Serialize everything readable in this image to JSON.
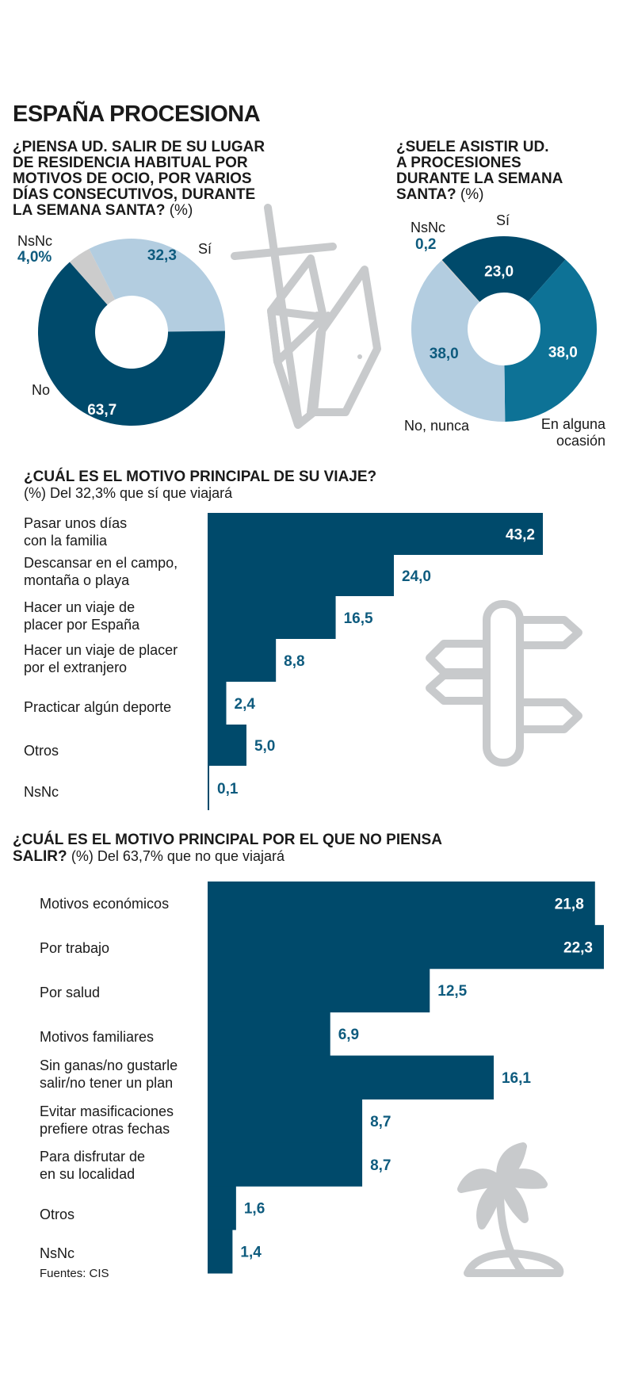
{
  "title": "ESPAÑA PROCESIONA",
  "colors": {
    "navy": "#004a6b",
    "teal": "#0d7296",
    "light_blue": "#b3cde0",
    "gray": "#cccccc",
    "label_blue": "#0e5b7e",
    "icon_gray": "#c8cacc"
  },
  "icons": [
    "crosses-icon",
    "signpost-icon",
    "palm-tree-icon"
  ],
  "chart_data": [
    {
      "type": "pie",
      "title_main": "¿PIENSA UD. SALIR DE SU LUGAR DE RESIDENCIA HABITUAL POR MOTIVOS DE OCIO, POR VARIOS DÍAS CONSECUTIVOS, DURANTE LA SEMANA SANTA?",
      "title_unit": "(%)",
      "title_lines": [
        "¿PIENSA UD. SALIR DE SU LUGAR",
        "DE RESIDENCIA HABITUAL POR",
        "MOTIVOS DE OCIO, POR VARIOS",
        "DÍAS CONSECUTIVOS, DURANTE",
        "LA SEMANA SANTA?"
      ],
      "slices": [
        {
          "name": "Sí",
          "value": 32.3,
          "value_label": "32,3",
          "color": "#b3cde0"
        },
        {
          "name": "No",
          "value": 63.7,
          "value_label": "63,7",
          "color": "#004a6b"
        },
        {
          "name": "NsNc",
          "value": 4.0,
          "value_label": "4,0%",
          "color": "#cccccc"
        }
      ]
    },
    {
      "type": "pie",
      "title_main": "¿SUELE ASISTIR UD. A PROCESIONES DURANTE LA SEMANA SANTA?",
      "title_unit": "(%)",
      "title_lines": [
        "¿SUELE ASISTIR UD.",
        "A PROCESIONES",
        "DURANTE LA SEMANA",
        "SANTA?"
      ],
      "slices": [
        {
          "name": "Sí",
          "value": 23.0,
          "value_label": "23,0",
          "color": "#004a6b"
        },
        {
          "name": "En alguna ocasión",
          "name_lines": [
            "En alguna",
            "ocasión"
          ],
          "value": 38.0,
          "value_label": "38,0",
          "color": "#0d7296"
        },
        {
          "name": "No, nunca",
          "value": 38.0,
          "value_label": "38,0",
          "color": "#b3cde0"
        },
        {
          "name": "NsNc",
          "value": 0.2,
          "value_label": "0,2",
          "color": "#cccccc"
        }
      ]
    },
    {
      "type": "bar",
      "orientation": "horizontal",
      "title": "¿CUÁL ES EL MOTIVO PRINCIPAL DE SU VIAJE?",
      "subtitle": "(%) Del 32,3% que sí que viajará",
      "xlim": [
        0,
        45
      ],
      "categories": [
        [
          "Pasar unos días",
          "con la familia"
        ],
        [
          "Descansar en el campo,",
          "montaña o playa"
        ],
        [
          "Hacer un viaje de",
          "placer por España"
        ],
        [
          "Hacer un viaje de placer",
          "por el extranjero"
        ],
        [
          "Practicar algún deporte"
        ],
        [
          "Otros"
        ],
        [
          "NsNc"
        ]
      ],
      "values": [
        43.2,
        24.0,
        16.5,
        8.8,
        2.4,
        5.0,
        0.1
      ],
      "value_labels": [
        "43,2",
        "24,0",
        "16,5",
        "8,8",
        "2,4",
        "5,0",
        "0,1"
      ]
    },
    {
      "type": "bar",
      "orientation": "horizontal",
      "title": "¿CUÁL ES EL MOTIVO PRINCIPAL POR EL QUE NO PIENSA SALIR?",
      "title_lines": [
        "¿CUÁL ES EL MOTIVO PRINCIPAL POR EL QUE NO PIENSA",
        "SALIR?"
      ],
      "subtitle": "(%) Del 63,7% que no que viajará",
      "xlim": [
        0,
        23
      ],
      "categories": [
        [
          "Motivos económicos"
        ],
        [
          "Por trabajo"
        ],
        [
          "Por salud"
        ],
        [
          "Motivos familiares"
        ],
        [
          "Sin ganas/no gustarle",
          "salir/no tener un plan"
        ],
        [
          "Evitar masificaciones",
          "prefiere otras fechas"
        ],
        [
          "Para disfrutar de",
          "en su localidad"
        ],
        [
          "Otros"
        ],
        [
          "NsNc"
        ]
      ],
      "values": [
        21.8,
        22.3,
        12.5,
        6.9,
        16.1,
        8.7,
        8.7,
        1.6,
        1.4
      ],
      "value_labels": [
        "21,8",
        "22,3",
        "12,5",
        "6,9",
        "16,1",
        "8,7",
        "8,7",
        "1,6",
        "1,4"
      ]
    }
  ],
  "source": "Fuentes: CIS"
}
